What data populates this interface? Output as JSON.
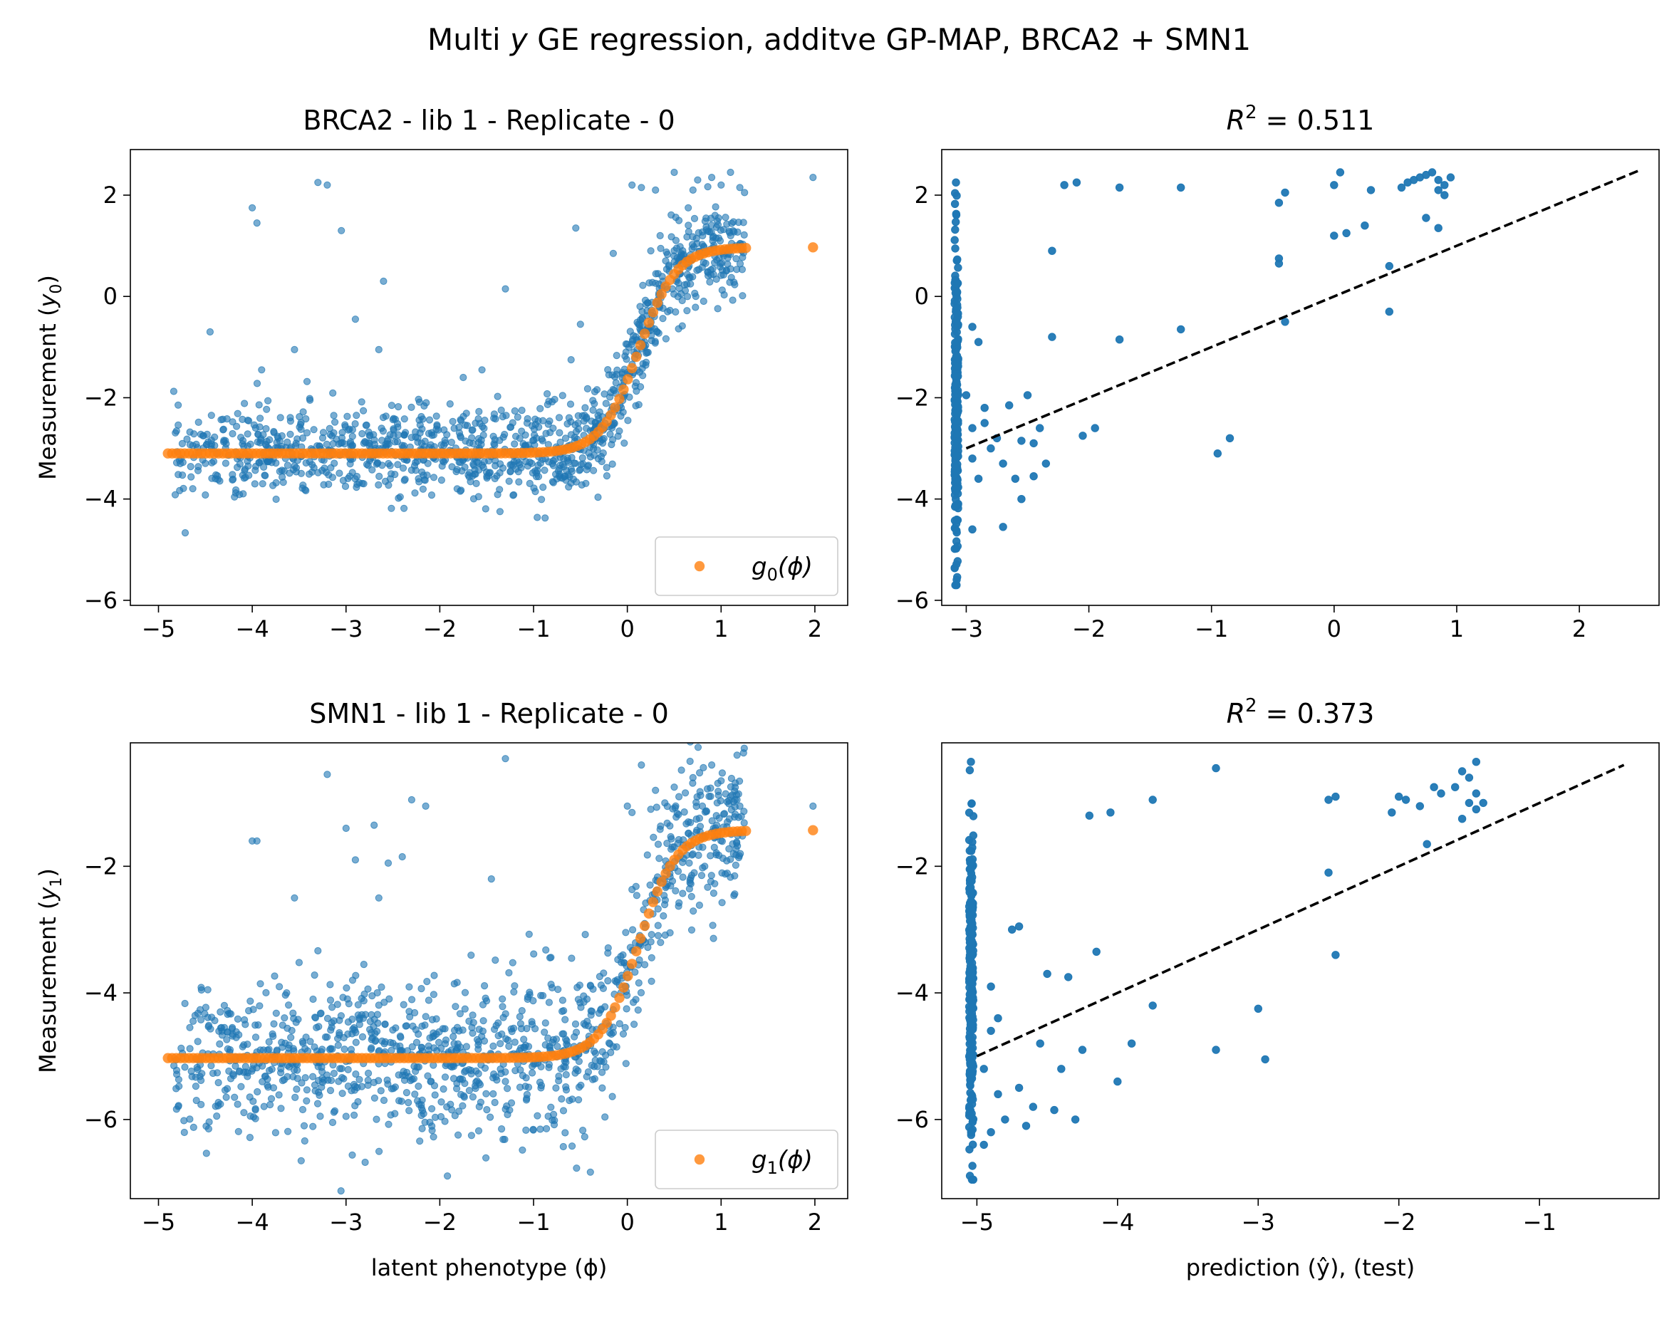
{
  "figure": {
    "title_pre": "Multi ",
    "title_var": "y",
    "title_post": " GE regression, additve GP-MAP, BRCA2 + SMN1"
  },
  "colors": {
    "data": "#1f77b4",
    "model": "#ff7f0e",
    "diagonal": "#000000"
  },
  "chart_data": [
    {
      "id": "brca2_phi",
      "type": "scatter",
      "title": "BRCA2 - lib 1 - Replicate - 0",
      "xlabel": "",
      "ylabel": "Measurement (y0)",
      "ylabel_base": "Measurement (",
      "ylabel_var": "y",
      "ylabel_sub": "0",
      "ylabel_close": ")",
      "xlim": [
        -5.3,
        2.35
      ],
      "ylim": [
        -6.1,
        2.9
      ],
      "xticks": [
        -5,
        -4,
        -3,
        -2,
        -1,
        0,
        1,
        2
      ],
      "yticks": [
        -6,
        -4,
        -2,
        0,
        2
      ],
      "legend": {
        "position": "lower-right",
        "label": "g0(ϕ)",
        "label_var": "g",
        "label_sub": "0",
        "label_arg": "(ϕ)"
      },
      "series": [
        {
          "kind": "points",
          "color": "#1f77b4",
          "x_range": [
            -4.85,
            1.25
          ],
          "background_level": -3.1,
          "noise_sd": 0.45,
          "n": 1200,
          "outliers": [
            [
              -4.0,
              1.75
            ],
            [
              -3.95,
              1.45
            ],
            [
              -3.3,
              2.25
            ],
            [
              -3.2,
              2.2
            ],
            [
              -3.05,
              1.3
            ],
            [
              -2.6,
              0.3
            ],
            [
              -1.3,
              0.15
            ],
            [
              -2.9,
              -0.45
            ],
            [
              -4.45,
              -0.7
            ],
            [
              -3.55,
              -1.05
            ],
            [
              -3.9,
              -1.45
            ],
            [
              -2.65,
              -1.05
            ],
            [
              -1.55,
              -1.45
            ],
            [
              -1.75,
              -1.6
            ],
            [
              -0.55,
              1.35
            ],
            [
              -0.15,
              0.85
            ],
            [
              0.25,
              0.9
            ],
            [
              0.05,
              2.2
            ],
            [
              0.15,
              2.15
            ],
            [
              0.3,
              2.1
            ],
            [
              0.5,
              2.45
            ],
            [
              0.75,
              2.3
            ],
            [
              0.9,
              2.35
            ],
            [
              1.0,
              2.2
            ],
            [
              1.2,
              2.15
            ],
            [
              0.55,
              1.5
            ],
            [
              0.65,
              1.75
            ],
            [
              1.1,
              2.45
            ],
            [
              1.25,
              2.05
            ],
            [
              1.98,
              2.35
            ],
            [
              -0.5,
              -0.55
            ],
            [
              -0.6,
              -1.25
            ],
            [
              0.2,
              -1.3
            ],
            [
              0.7,
              2.1
            ],
            [
              0.35,
              1.2
            ]
          ]
        },
        {
          "kind": "sigmoid",
          "name": "g0(ϕ)",
          "color": "#ff7f0e",
          "x_range": [
            -4.9,
            1.3
          ],
          "x_extra": [
            1.98
          ],
          "lower": -3.1,
          "upper": 0.97,
          "midpoint": 0.12,
          "slope": 5.0
        }
      ]
    },
    {
      "id": "brca2_pred",
      "type": "scatter",
      "title": "R² = 0.511",
      "title_var": "R",
      "title_sup": "2",
      "title_rest": " = 0.511",
      "xlabel": "",
      "ylabel": "",
      "xlim": [
        -3.2,
        2.65
      ],
      "ylim": [
        -6.1,
        2.9
      ],
      "xticks": [
        -3,
        -2,
        -1,
        0,
        1,
        2
      ],
      "yticks": [
        -6,
        -4,
        -2,
        0,
        2
      ],
      "diagonal": [
        [
          -3.0,
          -3.0
        ],
        [
          2.5,
          2.5
        ]
      ],
      "series": [
        {
          "kind": "points",
          "color": "#1f77b4",
          "column_x": -3.08,
          "column_y_range": [
            -5.7,
            2.25
          ],
          "n_column": 250,
          "points": [
            [
              -2.95,
              -2.6
            ],
            [
              -2.85,
              -2.5
            ],
            [
              -2.8,
              -3.0
            ],
            [
              -2.7,
              -3.3
            ],
            [
              -2.65,
              -2.15
            ],
            [
              -2.6,
              -3.6
            ],
            [
              -2.55,
              -2.85
            ],
            [
              -2.5,
              -1.95
            ],
            [
              -2.45,
              -2.9
            ],
            [
              -2.45,
              -3.55
            ],
            [
              -2.4,
              -2.6
            ],
            [
              -2.35,
              -3.3
            ],
            [
              -2.3,
              0.9
            ],
            [
              -2.3,
              -0.8
            ],
            [
              -2.2,
              2.2
            ],
            [
              -2.1,
              2.25
            ],
            [
              -2.05,
              -2.75
            ],
            [
              -1.95,
              -2.6
            ],
            [
              -1.75,
              2.15
            ],
            [
              -1.75,
              -0.85
            ],
            [
              -1.25,
              2.15
            ],
            [
              -1.25,
              -0.65
            ],
            [
              -0.95,
              -3.1
            ],
            [
              -0.85,
              -2.8
            ],
            [
              -0.45,
              1.85
            ],
            [
              -0.45,
              0.75
            ],
            [
              -0.45,
              0.65
            ],
            [
              -0.4,
              2.05
            ],
            [
              -0.4,
              -0.5
            ],
            [
              0.0,
              2.2
            ],
            [
              0.05,
              2.45
            ],
            [
              0.0,
              1.2
            ],
            [
              0.1,
              1.25
            ],
            [
              0.25,
              1.4
            ],
            [
              0.3,
              2.1
            ],
            [
              0.55,
              2.15
            ],
            [
              0.6,
              2.25
            ],
            [
              0.65,
              2.3
            ],
            [
              0.7,
              2.35
            ],
            [
              0.75,
              2.4
            ],
            [
              0.8,
              2.45
            ],
            [
              0.85,
              2.3
            ],
            [
              0.9,
              2.2
            ],
            [
              0.95,
              2.35
            ],
            [
              0.85,
              2.1
            ],
            [
              0.9,
              2.0
            ],
            [
              0.75,
              1.55
            ],
            [
              0.85,
              1.35
            ],
            [
              0.45,
              0.6
            ],
            [
              0.45,
              -0.3
            ],
            [
              -2.95,
              -3.2
            ],
            [
              -2.9,
              -3.6
            ],
            [
              -2.85,
              -2.2
            ],
            [
              -2.75,
              -2.8
            ],
            [
              -2.9,
              -0.9
            ],
            [
              -2.95,
              -0.6
            ],
            [
              -3.0,
              -1.95
            ],
            [
              -2.95,
              -4.6
            ],
            [
              -2.7,
              -4.55
            ],
            [
              -2.55,
              -4.0
            ]
          ]
        }
      ]
    },
    {
      "id": "smn1_phi",
      "type": "scatter",
      "title": "SMN1 - lib 1 - Replicate - 0",
      "xlabel": "latent phenotype (ϕ)",
      "ylabel": "Measurement (y1)",
      "ylabel_base": "Measurement (",
      "ylabel_var": "y",
      "ylabel_sub": "1",
      "ylabel_close": ")",
      "xlim": [
        -5.3,
        2.35
      ],
      "ylim": [
        -7.25,
        -0.05
      ],
      "xticks": [
        -5,
        -4,
        -3,
        -2,
        -1,
        0,
        1,
        2
      ],
      "yticks": [
        -6,
        -4,
        -2
      ],
      "legend": {
        "position": "lower-right",
        "label": "g1(ϕ)",
        "label_var": "g",
        "label_sub": "1",
        "label_arg": "(ϕ)"
      },
      "series": [
        {
          "kind": "points",
          "color": "#1f77b4",
          "x_range": [
            -4.85,
            1.25
          ],
          "background_level": -5.0,
          "noise_sd": 0.62,
          "n": 1200,
          "outliers": [
            [
              -3.2,
              -0.55
            ],
            [
              -1.3,
              -0.3
            ],
            [
              -2.3,
              -0.95
            ],
            [
              -2.15,
              -1.05
            ],
            [
              -3.0,
              -1.4
            ],
            [
              -2.7,
              -1.35
            ],
            [
              -4.0,
              -1.6
            ],
            [
              -3.95,
              -1.6
            ],
            [
              -2.9,
              -1.9
            ],
            [
              -2.55,
              -1.95
            ],
            [
              -2.4,
              -1.85
            ],
            [
              -1.45,
              -2.2
            ],
            [
              -3.55,
              -2.5
            ],
            [
              -2.65,
              -2.5
            ],
            [
              0.15,
              -0.4
            ],
            [
              0.3,
              -0.8
            ],
            [
              0.5,
              -0.75
            ],
            [
              0.7,
              -0.6
            ],
            [
              0.9,
              -0.4
            ],
            [
              1.0,
              -0.65
            ],
            [
              1.1,
              -0.9
            ],
            [
              1.2,
              -1.05
            ],
            [
              1.98,
              -1.05
            ],
            [
              0.05,
              -1.15
            ],
            [
              0.25,
              -1.1
            ],
            [
              0.55,
              -0.9
            ],
            [
              0.65,
              -1.3
            ],
            [
              0.8,
              -1.05
            ],
            [
              0.95,
              -1.2
            ],
            [
              1.15,
              -0.95
            ],
            [
              0.0,
              -1.05
            ],
            [
              0.4,
              -1.0
            ]
          ]
        },
        {
          "kind": "sigmoid",
          "name": "g1(ϕ)",
          "color": "#ff7f0e",
          "x_range": [
            -4.9,
            1.3
          ],
          "x_extra": [
            1.98
          ],
          "lower": -5.03,
          "upper": -1.43,
          "midpoint": 0.12,
          "slope": 5.0
        }
      ]
    },
    {
      "id": "smn1_pred",
      "type": "scatter",
      "title": "R² = 0.373",
      "title_var": "R",
      "title_sup": "2",
      "title_rest": " = 0.373",
      "xlabel": "prediction (ŷ), (test)",
      "ylabel": "",
      "xlim": [
        -5.25,
        -0.15
      ],
      "ylim": [
        -7.25,
        -0.05
      ],
      "xticks": [
        -5,
        -4,
        -3,
        -2,
        -1
      ],
      "yticks": [
        -6,
        -4,
        -2
      ],
      "diagonal": [
        [
          -5.0,
          -5.0
        ],
        [
          -0.4,
          -0.4
        ]
      ],
      "series": [
        {
          "kind": "points",
          "color": "#1f77b4",
          "column_x": -5.04,
          "column_y_range": [
            -6.95,
            -0.35
          ],
          "n_column": 260,
          "points": [
            [
              -4.95,
              -5.2
            ],
            [
              -4.9,
              -4.6
            ],
            [
              -4.85,
              -5.6
            ],
            [
              -4.8,
              -6.0
            ],
            [
              -4.75,
              -3.0
            ],
            [
              -4.7,
              -5.5
            ],
            [
              -4.7,
              -2.95
            ],
            [
              -4.65,
              -6.1
            ],
            [
              -4.6,
              -5.8
            ],
            [
              -4.55,
              -4.8
            ],
            [
              -4.5,
              -3.7
            ],
            [
              -4.45,
              -5.85
            ],
            [
              -4.4,
              -5.2
            ],
            [
              -4.35,
              -3.75
            ],
            [
              -4.3,
              -6.0
            ],
            [
              -4.25,
              -4.9
            ],
            [
              -4.2,
              -1.2
            ],
            [
              -4.15,
              -3.35
            ],
            [
              -4.05,
              -1.15
            ],
            [
              -4.0,
              -5.4
            ],
            [
              -3.9,
              -4.8
            ],
            [
              -3.75,
              -0.95
            ],
            [
              -3.75,
              -4.2
            ],
            [
              -3.3,
              -0.45
            ],
            [
              -3.3,
              -4.9
            ],
            [
              -3.0,
              -4.25
            ],
            [
              -2.95,
              -5.05
            ],
            [
              -2.5,
              -0.95
            ],
            [
              -2.45,
              -0.9
            ],
            [
              -2.5,
              -2.1
            ],
            [
              -2.45,
              -3.4
            ],
            [
              -2.05,
              -1.15
            ],
            [
              -2.0,
              -0.9
            ],
            [
              -1.95,
              -0.95
            ],
            [
              -1.85,
              -1.05
            ],
            [
              -1.75,
              -0.75
            ],
            [
              -1.7,
              -0.85
            ],
            [
              -1.6,
              -0.75
            ],
            [
              -1.55,
              -0.5
            ],
            [
              -1.5,
              -0.6
            ],
            [
              -1.45,
              -0.35
            ],
            [
              -1.45,
              -0.85
            ],
            [
              -1.5,
              -1.0
            ],
            [
              -1.45,
              -1.1
            ],
            [
              -1.4,
              -1.0
            ],
            [
              -1.55,
              -1.25
            ],
            [
              -1.8,
              -1.65
            ],
            [
              -4.9,
              -3.9
            ],
            [
              -4.85,
              -4.4
            ],
            [
              -4.95,
              -6.4
            ],
            [
              -4.9,
              -6.2
            ]
          ]
        }
      ]
    }
  ]
}
